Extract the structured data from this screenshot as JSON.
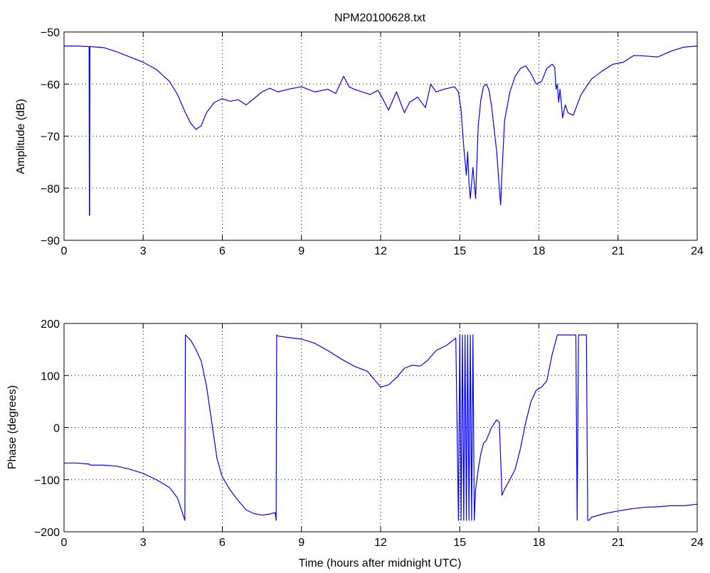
{
  "figure": {
    "title": "NPM20100628.txt",
    "line_color": "#0000ff",
    "axis_color": "#000000",
    "background": "#ffffff"
  },
  "chart_data": [
    {
      "type": "line",
      "title": "NPM20100628.txt",
      "xlabel": "",
      "ylabel": "Amplitude (dB)",
      "xlim": [
        0,
        24
      ],
      "ylim": [
        -90,
        -50
      ],
      "xticks": [
        "0",
        "3",
        "6",
        "9",
        "12",
        "15",
        "18",
        "21",
        "24"
      ],
      "yticks": [
        "-90",
        "-80",
        "-70",
        "-60",
        "-50"
      ],
      "grid": true,
      "series": [
        {
          "x": [
            0,
            0.5,
            0.95,
            0.96,
            0.97,
            0.98,
            1.0,
            1.5,
            2.0,
            2.5,
            3.0,
            3.5,
            4.0,
            4.3,
            4.6,
            4.8,
            5.0,
            5.2,
            5.4,
            5.7,
            6.0,
            6.3,
            6.6,
            6.9,
            7.2,
            7.5,
            7.8,
            8.1,
            8.5,
            9.0,
            9.5,
            10.0,
            10.3,
            10.6,
            10.8,
            11.0,
            11.3,
            11.6,
            11.9,
            12.1,
            12.3,
            12.6,
            12.9,
            13.1,
            13.4,
            13.7,
            13.9,
            14.1,
            14.4,
            14.8,
            14.95,
            15.05,
            15.15,
            15.25,
            15.3,
            15.35,
            15.4,
            15.5,
            15.6,
            15.7,
            15.8,
            15.9,
            16.0,
            16.1,
            16.2,
            16.4,
            16.5,
            16.55,
            16.6,
            16.7,
            16.9,
            17.1,
            17.3,
            17.5,
            17.7,
            17.9,
            18.1,
            18.3,
            18.5,
            18.6,
            18.65,
            18.7,
            18.75,
            18.8,
            18.9,
            19.0,
            19.1,
            19.3,
            19.6,
            20.0,
            20.4,
            20.8,
            21.2,
            21.6,
            22.0,
            22.5,
            23.0,
            23.5,
            24.0
          ],
          "y": [
            -52.7,
            -52.7,
            -52.8,
            -85.2,
            -85.2,
            -52.8,
            -52.8,
            -53.0,
            -53.8,
            -54.8,
            -55.8,
            -57.2,
            -59.5,
            -62.0,
            -65.5,
            -67.5,
            -68.7,
            -68.0,
            -65.5,
            -63.5,
            -62.8,
            -63.3,
            -63.0,
            -64.0,
            -62.8,
            -61.5,
            -60.8,
            -61.5,
            -61.0,
            -60.5,
            -61.5,
            -61.0,
            -61.8,
            -58.5,
            -60.5,
            -61.0,
            -61.5,
            -62.0,
            -61.2,
            -63.0,
            -65.0,
            -61.5,
            -65.5,
            -63.5,
            -62.5,
            -64.5,
            -60.0,
            -61.5,
            -61.0,
            -60.5,
            -61.5,
            -65.0,
            -72.0,
            -77.5,
            -73.0,
            -79.0,
            -82.0,
            -76.0,
            -82.0,
            -68.0,
            -63.0,
            -60.5,
            -60.0,
            -61.0,
            -64.0,
            -73.0,
            -80.0,
            -83.2,
            -77.0,
            -67.0,
            -61.5,
            -58.5,
            -57.0,
            -56.5,
            -58.0,
            -60.0,
            -59.5,
            -57.0,
            -56.2,
            -56.8,
            -61.0,
            -60.0,
            -63.5,
            -61.0,
            -66.5,
            -64.0,
            -65.5,
            -66.0,
            -62.0,
            -59.0,
            -57.5,
            -56.2,
            -55.8,
            -54.5,
            -54.6,
            -54.8,
            -53.7,
            -52.9,
            -52.7
          ]
        }
      ]
    },
    {
      "type": "line",
      "title": "",
      "xlabel": "Time (hours after midnight UTC)",
      "ylabel": "Phase (degrees)",
      "xlim": [
        0,
        24
      ],
      "ylim": [
        -200,
        200
      ],
      "xticks": [
        "0",
        "3",
        "6",
        "9",
        "12",
        "15",
        "18",
        "21",
        "24"
      ],
      "yticks": [
        "-200",
        "-100",
        "0",
        "100",
        "200"
      ],
      "grid": true,
      "series": [
        {
          "x": [
            0,
            0.5,
            0.95,
            1.0,
            1.5,
            2.0,
            2.5,
            3.0,
            3.5,
            4.0,
            4.3,
            4.58,
            4.6,
            4.8,
            5.0,
            5.2,
            5.4,
            5.6,
            5.8,
            6.0,
            6.3,
            6.6,
            6.9,
            7.2,
            7.5,
            7.8,
            8.0,
            8.04,
            8.06,
            8.1,
            8.5,
            9.0,
            9.5,
            10.0,
            10.5,
            11.0,
            11.5,
            11.8,
            12.0,
            12.3,
            12.6,
            12.9,
            13.2,
            13.5,
            13.8,
            14.1,
            14.5,
            14.85,
            14.95,
            15.0,
            15.05,
            15.1,
            15.15,
            15.2,
            15.25,
            15.3,
            15.35,
            15.4,
            15.45,
            15.5,
            15.55,
            15.6,
            15.7,
            15.8,
            15.9,
            16.0,
            16.2,
            16.4,
            16.5,
            16.6,
            16.7,
            16.9,
            17.1,
            17.3,
            17.5,
            17.7,
            17.9,
            18.1,
            18.3,
            18.5,
            18.7,
            18.9,
            19.1,
            19.3,
            19.4,
            19.45,
            19.5,
            19.55,
            19.8,
            19.85,
            19.9,
            20.0,
            20.5,
            21.0,
            21.5,
            22.0,
            22.5,
            23.0,
            23.5,
            24.0
          ],
          "y": [
            -68,
            -68,
            -70,
            -72,
            -72,
            -74,
            -80,
            -88,
            -100,
            -115,
            -135,
            -178,
            178,
            168,
            150,
            128,
            80,
            10,
            -60,
            -95,
            -120,
            -140,
            -158,
            -165,
            -168,
            -166,
            -163,
            -178,
            178,
            176,
            173,
            170,
            162,
            148,
            132,
            118,
            108,
            90,
            78,
            82,
            96,
            114,
            120,
            118,
            130,
            148,
            158,
            172,
            -178,
            178,
            -178,
            178,
            -178,
            178,
            -178,
            178,
            -178,
            178,
            -178,
            178,
            -178,
            -120,
            -80,
            -50,
            -30,
            -25,
            0,
            15,
            10,
            -130,
            -118,
            -100,
            -80,
            -40,
            10,
            50,
            72,
            78,
            90,
            140,
            178,
            178,
            178,
            178,
            178,
            -178,
            178,
            178,
            178,
            -178,
            -178,
            -172,
            -165,
            -160,
            -156,
            -153,
            -152,
            -150,
            -150,
            -147
          ]
        }
      ]
    }
  ]
}
